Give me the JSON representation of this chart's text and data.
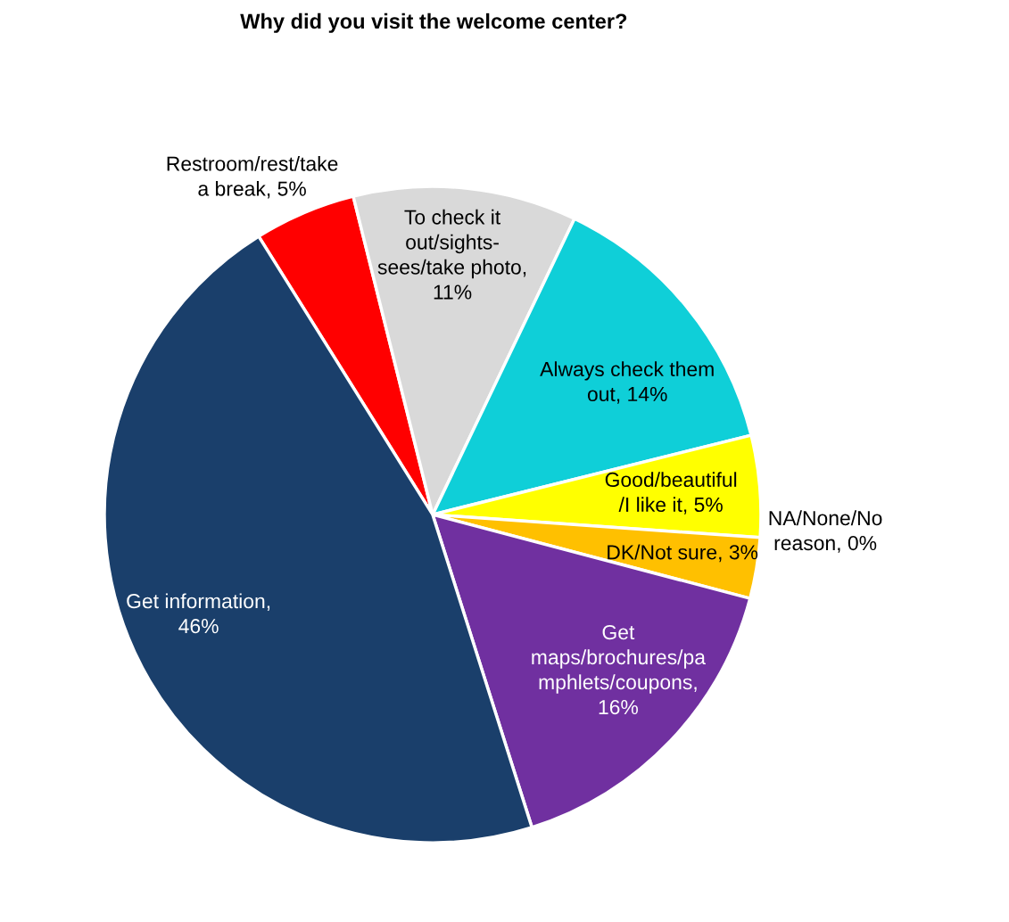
{
  "chart_data": {
    "type": "pie",
    "title": "Why did you visit the welcome center?",
    "categories": [
      "Restroom/rest/take\na break",
      "To check it\nout/sights-\nsees/take photo",
      "Always check them\nout",
      "Good/beautiful\n/I like it",
      "NA/None/No\nreason",
      "DK/Not sure",
      "Get\nmaps/brochures/pa\nmphlets/coupons",
      "Get information"
    ],
    "values": [
      5,
      11,
      14,
      5,
      0,
      3,
      16,
      46
    ],
    "value_labels": [
      ", 5%",
      ",\n11%",
      ", 14%",
      ", 5%",
      ", 0%",
      ", 3%",
      ",\n16%",
      ",\n46%"
    ],
    "colors": [
      "#ff0000",
      "#d9d9d9",
      "#0fcfd8",
      "#ffff00",
      "#92d050",
      "#ffc000",
      "#7030a0",
      "#1a3f6b"
    ],
    "legend": false
  }
}
